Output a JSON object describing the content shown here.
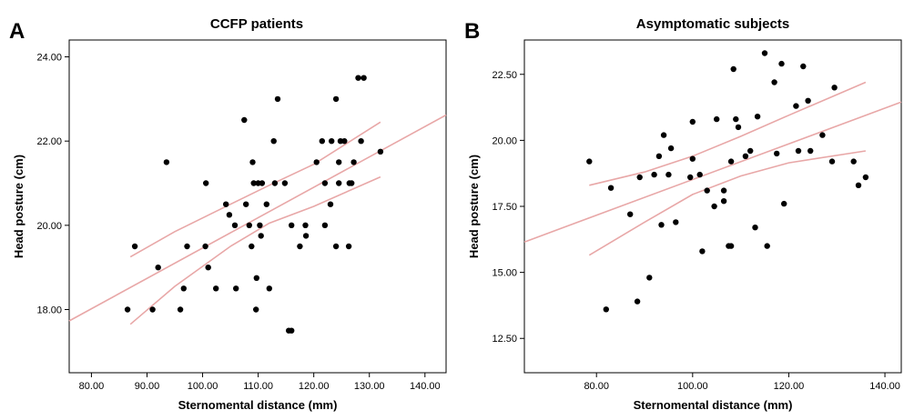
{
  "chart_data": [
    {
      "type": "scatter",
      "panel_letter": "A",
      "title": "CCFP patients",
      "xlabel": "Sternomental distance (mm)",
      "ylabel": "Head posture (cm)",
      "xlim": [
        76,
        143.8
      ],
      "ylim": [
        16.5,
        24.4
      ],
      "xticks": [
        80,
        90,
        100,
        110,
        120,
        130,
        140
      ],
      "xtick_labels": [
        "80.00",
        "90.00",
        "100.00",
        "110.00",
        "120.00",
        "130.00",
        "140.00"
      ],
      "yticks": [
        18,
        20,
        22,
        24
      ],
      "ytick_labels": [
        "18.00",
        "20.00",
        "22.00",
        "24.00"
      ],
      "points": [
        [
          86.5,
          18.0
        ],
        [
          87.8,
          19.5
        ],
        [
          91.0,
          18.0
        ],
        [
          92.0,
          19.0
        ],
        [
          93.5,
          21.5
        ],
        [
          96.0,
          18.0
        ],
        [
          96.6,
          18.5
        ],
        [
          97.2,
          19.5
        ],
        [
          100.5,
          19.5
        ],
        [
          100.6,
          21.0
        ],
        [
          101.0,
          19.0
        ],
        [
          102.4,
          18.5
        ],
        [
          104.2,
          20.5
        ],
        [
          104.8,
          20.25
        ],
        [
          105.8,
          20.0
        ],
        [
          106.0,
          18.5
        ],
        [
          107.5,
          22.5
        ],
        [
          107.8,
          20.5
        ],
        [
          108.4,
          20.0
        ],
        [
          108.8,
          19.5
        ],
        [
          109.0,
          21.5
        ],
        [
          109.2,
          21.0
        ],
        [
          109.6,
          18.0
        ],
        [
          109.7,
          18.75
        ],
        [
          110.0,
          21.0
        ],
        [
          110.3,
          20.0
        ],
        [
          110.5,
          19.75
        ],
        [
          110.7,
          21.0
        ],
        [
          111.5,
          20.5
        ],
        [
          112.0,
          18.5
        ],
        [
          112.8,
          22.0
        ],
        [
          113.0,
          21.0
        ],
        [
          113.5,
          23.0
        ],
        [
          114.8,
          21.0
        ],
        [
          115.5,
          17.5
        ],
        [
          116.0,
          17.5
        ],
        [
          116.0,
          20.0
        ],
        [
          117.5,
          19.5
        ],
        [
          118.5,
          20.0
        ],
        [
          118.6,
          19.75
        ],
        [
          120.5,
          21.5
        ],
        [
          121.5,
          22.0
        ],
        [
          122.0,
          20.0
        ],
        [
          122.0,
          21.0
        ],
        [
          123.0,
          20.5
        ],
        [
          123.2,
          22.0
        ],
        [
          124.0,
          23.0
        ],
        [
          124.0,
          19.5
        ],
        [
          124.5,
          21.0
        ],
        [
          124.5,
          21.5
        ],
        [
          124.8,
          22.0
        ],
        [
          125.5,
          22.0
        ],
        [
          126.3,
          19.5
        ],
        [
          126.4,
          21.0
        ],
        [
          126.8,
          21.0
        ],
        [
          127.2,
          21.5
        ],
        [
          128.0,
          23.5
        ],
        [
          128.5,
          22.0
        ],
        [
          129.0,
          23.5
        ],
        [
          132.0,
          21.75
        ]
      ],
      "fit_line": [
        [
          76.0,
          17.73
        ],
        [
          143.8,
          22.62
        ]
      ],
      "ci_upper": [
        [
          87.0,
          19.25
        ],
        [
          95.0,
          19.85
        ],
        [
          105.0,
          20.5
        ],
        [
          112.0,
          20.95
        ],
        [
          120.0,
          21.45
        ],
        [
          132.0,
          22.45
        ]
      ],
      "ci_lower": [
        [
          87.0,
          17.65
        ],
        [
          95.0,
          18.55
        ],
        [
          105.0,
          19.5
        ],
        [
          112.0,
          20.05
        ],
        [
          120.0,
          20.45
        ],
        [
          132.0,
          21.15
        ]
      ]
    },
    {
      "type": "scatter",
      "panel_letter": "B",
      "title": "Asymptomatic subjects",
      "xlabel": "Sternomental distance (mm)",
      "ylabel": "Head posture (cm)",
      "xlim": [
        65,
        143.4
      ],
      "ylim": [
        11.2,
        23.8
      ],
      "xticks": [
        80,
        100,
        120,
        140
      ],
      "xtick_labels": [
        "80.00",
        "100.00",
        "120.00",
        "140.00"
      ],
      "yticks": [
        12.5,
        15.0,
        17.5,
        20.0,
        22.5
      ],
      "ytick_labels": [
        "12.50",
        "15.00",
        "17.50",
        "20.00",
        "22.50"
      ],
      "points": [
        [
          78.5,
          19.2
        ],
        [
          82.0,
          13.6
        ],
        [
          83.0,
          18.2
        ],
        [
          87.0,
          17.2
        ],
        [
          88.5,
          13.9
        ],
        [
          89.0,
          18.6
        ],
        [
          91.0,
          14.8
        ],
        [
          92.0,
          18.7
        ],
        [
          93.0,
          19.4
        ],
        [
          93.5,
          16.8
        ],
        [
          94.0,
          20.2
        ],
        [
          95.0,
          18.7
        ],
        [
          95.5,
          19.7
        ],
        [
          96.5,
          16.9
        ],
        [
          99.5,
          18.6
        ],
        [
          100.0,
          19.3
        ],
        [
          100.0,
          20.7
        ],
        [
          101.5,
          18.7
        ],
        [
          102.0,
          15.8
        ],
        [
          103.0,
          18.1
        ],
        [
          104.5,
          17.5
        ],
        [
          105.0,
          20.8
        ],
        [
          106.5,
          18.1
        ],
        [
          106.5,
          17.7
        ],
        [
          107.5,
          16.0
        ],
        [
          108.0,
          16.0
        ],
        [
          108.0,
          19.2
        ],
        [
          108.5,
          22.7
        ],
        [
          109.0,
          20.8
        ],
        [
          109.5,
          20.5
        ],
        [
          111.0,
          19.4
        ],
        [
          112.0,
          19.6
        ],
        [
          113.0,
          16.7
        ],
        [
          113.5,
          20.9
        ],
        [
          115.0,
          23.3
        ],
        [
          115.5,
          16.0
        ],
        [
          117.0,
          22.2
        ],
        [
          117.5,
          19.5
        ],
        [
          118.5,
          22.9
        ],
        [
          119.0,
          17.6
        ],
        [
          121.5,
          21.3
        ],
        [
          122.0,
          19.6
        ],
        [
          123.0,
          22.8
        ],
        [
          124.0,
          21.5
        ],
        [
          124.5,
          19.6
        ],
        [
          127.0,
          20.2
        ],
        [
          129.0,
          19.2
        ],
        [
          129.5,
          22.0
        ],
        [
          133.5,
          19.2
        ],
        [
          134.5,
          18.3
        ],
        [
          136.0,
          18.6
        ]
      ],
      "fit_line": [
        [
          65.0,
          16.15
        ],
        [
          143.4,
          21.45
        ]
      ],
      "ci_upper": [
        [
          78.5,
          18.3
        ],
        [
          90.0,
          18.8
        ],
        [
          100.0,
          19.4
        ],
        [
          110.0,
          20.15
        ],
        [
          120.0,
          20.95
        ],
        [
          136.0,
          22.2
        ]
      ],
      "ci_lower": [
        [
          78.5,
          15.65
        ],
        [
          90.0,
          16.9
        ],
        [
          100.0,
          17.95
        ],
        [
          110.0,
          18.65
        ],
        [
          120.0,
          19.15
        ],
        [
          136.0,
          19.6
        ]
      ]
    }
  ]
}
